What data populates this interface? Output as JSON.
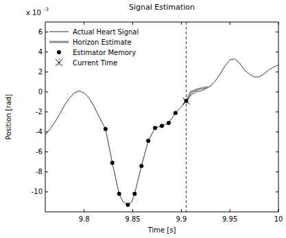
{
  "chart_data": {
    "type": "line",
    "title": "Signal Estimation",
    "x_label": "Time [s]",
    "y_label": "Position [rad]",
    "annotations": [
      {
        "text": "x 10",
        "superscript": "-3"
      }
    ],
    "xlim": [
      9.76,
      10.0
    ],
    "xticks": [
      9.8,
      9.85,
      9.9,
      9.95,
      10
    ],
    "ylim": [
      -12,
      7
    ],
    "yticks": [
      -10,
      -8,
      -6,
      -4,
      -2,
      0,
      2,
      4,
      6
    ],
    "grid": false,
    "legend": "top-left",
    "series": [
      {
        "name": "Actual Heart Signal",
        "color": "#333333",
        "type": "line",
        "line_style": "solid",
        "marker": "none",
        "x": [
          9.76,
          9.765,
          9.77,
          9.775,
          9.78,
          9.785,
          9.79,
          9.795,
          9.8,
          9.805,
          9.81,
          9.815,
          9.822,
          9.829,
          9.836,
          9.84,
          9.845,
          9.849,
          9.852,
          9.859,
          9.866,
          9.873,
          9.88,
          9.887,
          9.894,
          9.9,
          9.905,
          9.91,
          9.915,
          9.92,
          9.925,
          9.93,
          9.935,
          9.94,
          9.945,
          9.95,
          9.955,
          9.96,
          9.965,
          9.97,
          9.975,
          9.98,
          9.985,
          9.99,
          9.995,
          10.0
        ],
        "values": [
          -4.3,
          -3.7,
          -3.0,
          -2.2,
          -1.3,
          -0.6,
          -0.1,
          0.1,
          -0.1,
          -0.6,
          -1.4,
          -2.4,
          -3.7,
          -7.1,
          -10.2,
          -11.0,
          -11.3,
          -11.0,
          -10.2,
          -7.4,
          -4.9,
          -3.6,
          -3.4,
          -3.1,
          -2.1,
          -1.5,
          -0.9,
          -0.3,
          0.0,
          0.1,
          0.3,
          0.6,
          1.1,
          1.8,
          2.6,
          3.2,
          3.3,
          2.9,
          2.2,
          1.8,
          1.5,
          1.5,
          1.8,
          2.2,
          2.5,
          2.7
        ]
      },
      {
        "name": "Horizon Estimate",
        "color": "#8c8c8c",
        "type": "line",
        "line_style": "solid",
        "marker": "none",
        "x": [
          9.905,
          9.91,
          9.915,
          9.92,
          9.928
        ],
        "values": [
          -0.9,
          0.0,
          0.2,
          0.35,
          0.5
        ]
      },
      {
        "name": "Estimator Memory",
        "color": "#000000",
        "type": "scatter",
        "marker": "circle",
        "x": [
          9.822,
          9.829,
          9.836,
          9.845,
          9.852,
          9.859,
          9.866,
          9.873,
          9.88,
          9.887,
          9.894,
          9.905
        ],
        "values": [
          -3.7,
          -7.1,
          -10.2,
          -11.3,
          -10.2,
          -7.4,
          -4.9,
          -3.6,
          -3.4,
          -3.1,
          -2.1,
          -0.9
        ]
      },
      {
        "name": "Current Time",
        "color": "#000000",
        "type": "scatter",
        "marker": "x",
        "line_style": "dashed",
        "x": [
          9.905
        ],
        "values": [
          -0.9
        ]
      }
    ]
  }
}
